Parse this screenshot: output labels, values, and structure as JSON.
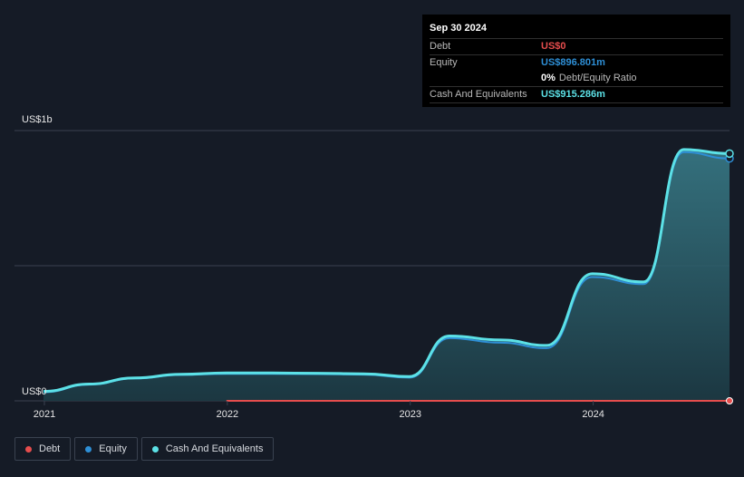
{
  "colors": {
    "background": "#151b26",
    "debt": "#e64d4d",
    "equity": "#2e8fd6",
    "cash": "#5ce1e6",
    "grid": "#3a4250",
    "text": "#e6e6e6"
  },
  "tooltip": {
    "date": "Sep 30 2024",
    "debt_label": "Debt",
    "debt_value": "US$0",
    "equity_label": "Equity",
    "equity_value": "US$896.801m",
    "ratio_value": "0%",
    "ratio_label": "Debt/Equity Ratio",
    "cash_label": "Cash And Equivalents",
    "cash_value": "US$915.286m"
  },
  "legend": {
    "debt": "Debt",
    "equity": "Equity",
    "cash": "Cash And Equivalents"
  },
  "chart_data": {
    "type": "area",
    "title": "Debt to Equity History",
    "y_unit": "US$m",
    "ylim": [
      0,
      1000
    ],
    "y_ticks": [
      {
        "value": 0,
        "label": "US$0"
      },
      {
        "value": 1000,
        "label": "US$1b"
      }
    ],
    "x_ticks": [
      {
        "value": 2021.0,
        "label": "2021"
      },
      {
        "value": 2022.0,
        "label": "2022"
      },
      {
        "value": 2023.0,
        "label": "2023"
      },
      {
        "value": 2024.0,
        "label": "2024"
      }
    ],
    "xlim": [
      2021.0,
      2024.75
    ],
    "grid": true,
    "series": [
      {
        "name": "Cash And Equivalents",
        "key": "cash",
        "x": [
          2021.0,
          2021.25,
          2021.5,
          2021.75,
          2022.0,
          2022.25,
          2022.5,
          2022.75,
          2023.0,
          2023.22,
          2023.5,
          2023.75,
          2024.0,
          2024.28,
          2024.5,
          2024.75
        ],
        "values": [
          35,
          62,
          85,
          98,
          103,
          103,
          102,
          100,
          90,
          240,
          225,
          205,
          470,
          440,
          930,
          915
        ]
      },
      {
        "name": "Equity",
        "key": "equity",
        "x": [
          2021.0,
          2021.25,
          2021.5,
          2021.75,
          2022.0,
          2022.25,
          2022.5,
          2022.75,
          2023.0,
          2023.22,
          2023.5,
          2023.75,
          2024.0,
          2024.28,
          2024.5,
          2024.75
        ],
        "values": [
          32,
          60,
          83,
          96,
          100,
          100,
          99,
          97,
          86,
          232,
          215,
          195,
          458,
          432,
          920,
          897
        ]
      },
      {
        "name": "Debt",
        "key": "debt",
        "x": [
          2022.0,
          2024.75
        ],
        "values": [
          0,
          0
        ]
      }
    ]
  }
}
